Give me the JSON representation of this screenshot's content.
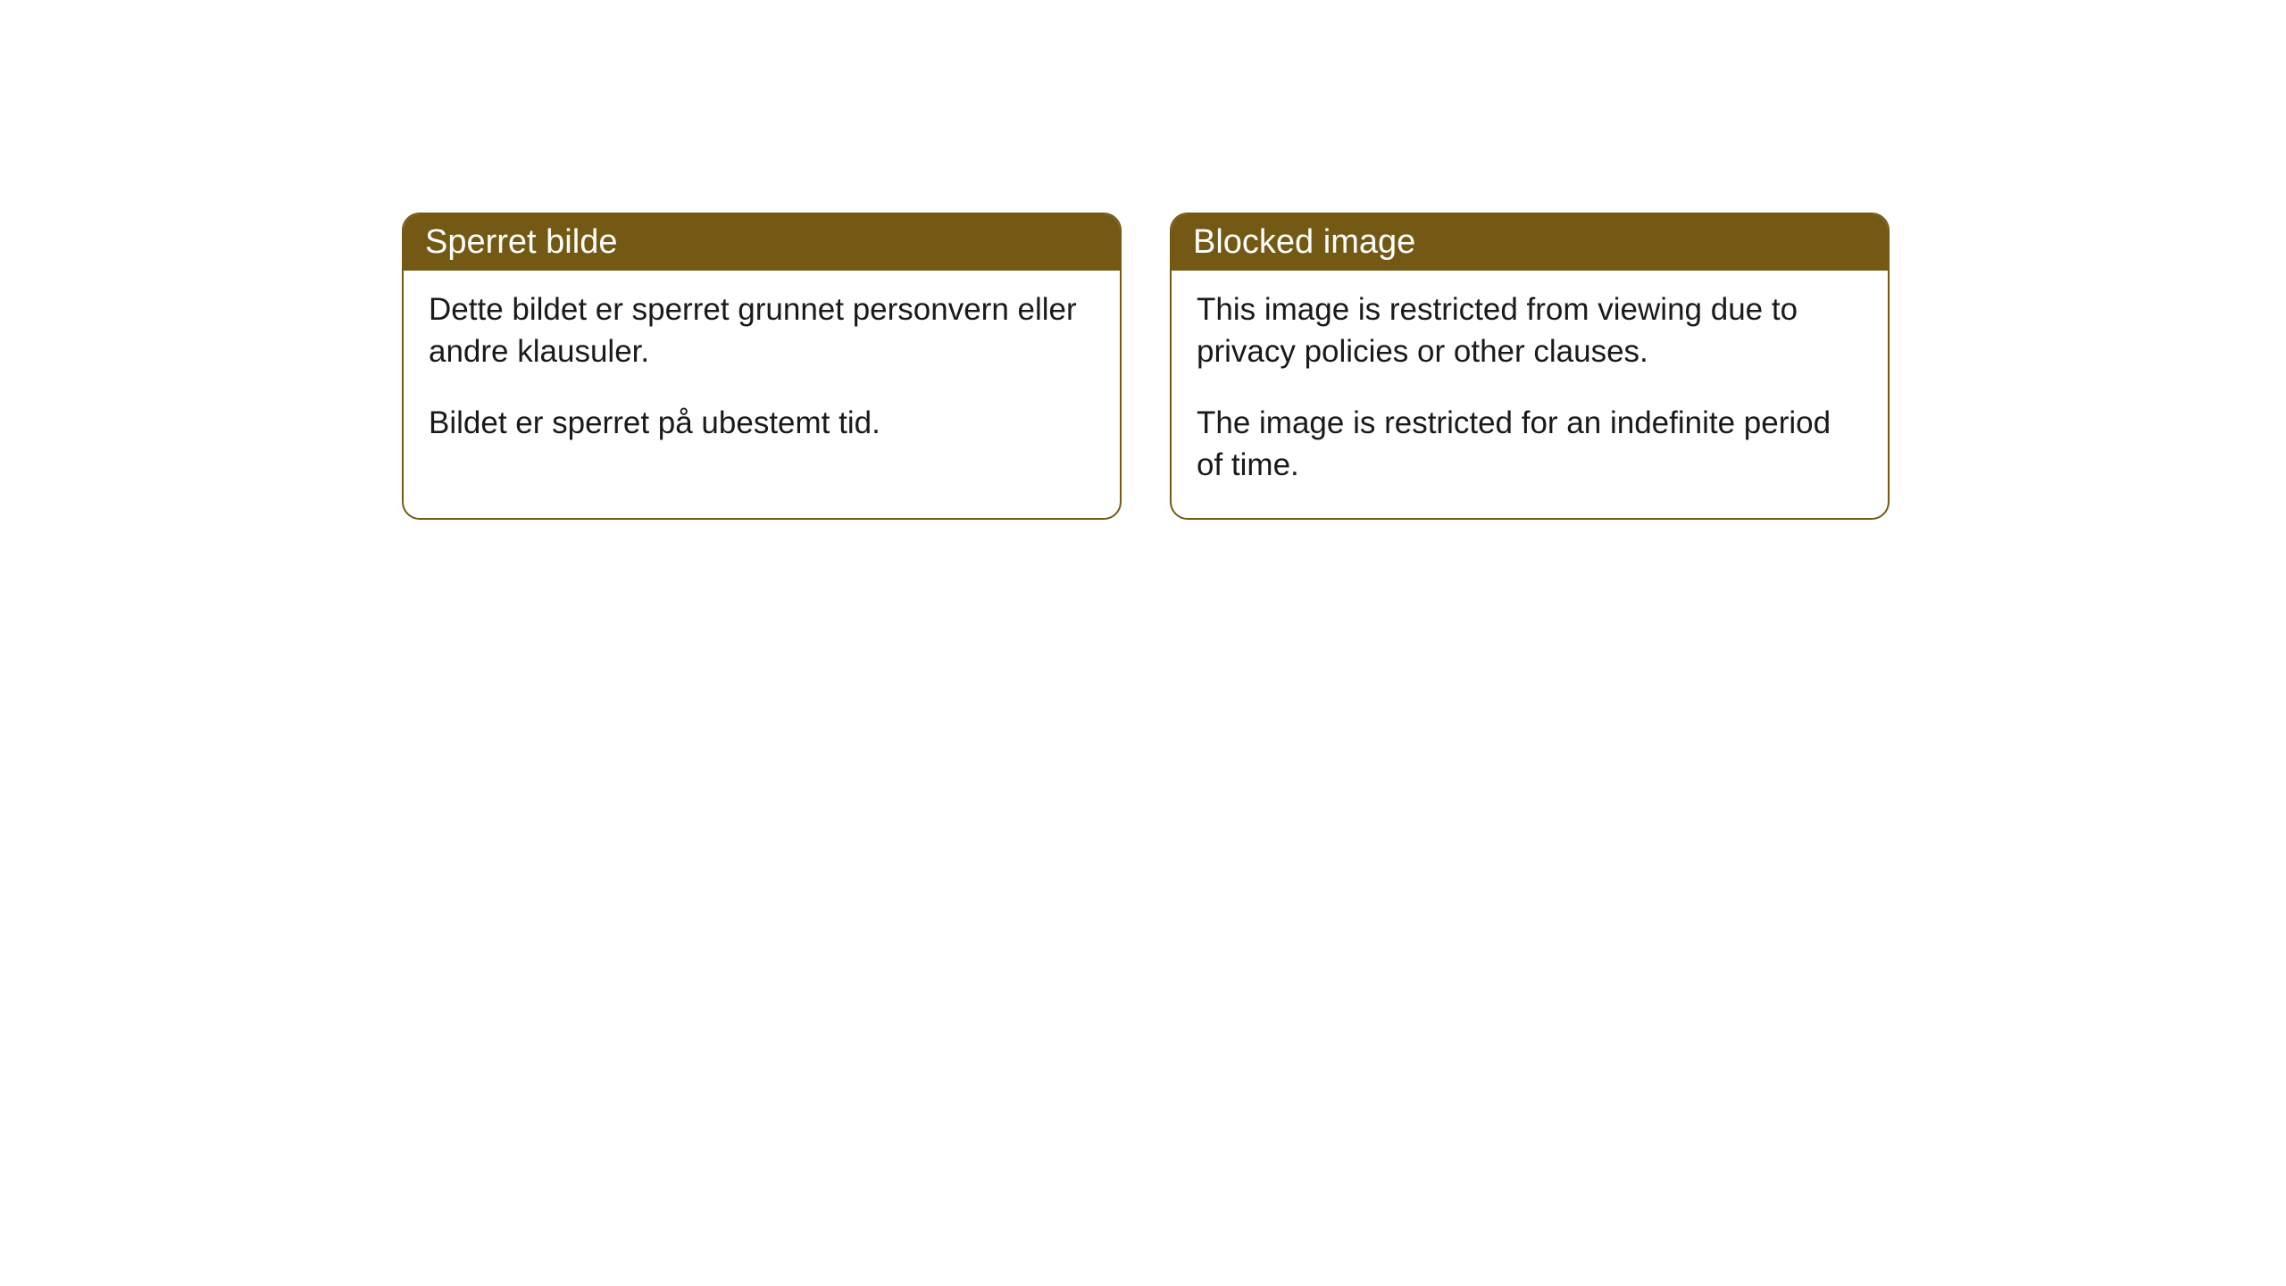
{
  "cards": [
    {
      "title": "Sperret bilde",
      "paragraph1": "Dette bildet er sperret grunnet personvern eller andre klausuler.",
      "paragraph2": "Bildet er sperret på ubestemt tid."
    },
    {
      "title": "Blocked image",
      "paragraph1": "This image is restricted from viewing due to privacy policies or other clauses.",
      "paragraph2": "The image is restricted for an indefinite period of time."
    }
  ],
  "styling": {
    "header_bg": "#735913",
    "header_text_color": "#ffffff",
    "border_color": "#735913",
    "body_bg": "#ffffff",
    "body_text_color": "#1a1a1a",
    "border_radius": 20,
    "header_fontsize": 38,
    "body_fontsize": 35
  }
}
